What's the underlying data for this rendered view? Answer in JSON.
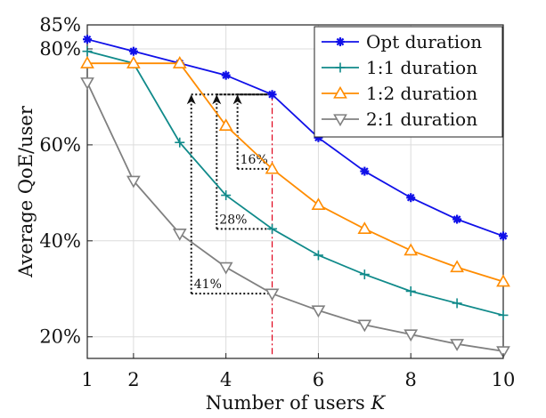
{
  "chart_data": {
    "type": "line",
    "xlabel": "Number of users",
    "xlabel_var": "K",
    "ylabel": "Average QoE/user",
    "x": [
      1,
      2,
      3,
      4,
      5,
      6,
      7,
      8,
      9,
      10
    ],
    "xticks": [
      "1",
      "2",
      "4",
      "6",
      "8",
      "10"
    ],
    "xtick_values": [
      1,
      2,
      4,
      6,
      8,
      10
    ],
    "xlim": [
      1,
      10
    ],
    "ylim": [
      15.5,
      85
    ],
    "yticks": [
      "20%",
      "40%",
      "60%",
      "80%",
      "85%"
    ],
    "ytick_values": [
      20,
      40,
      60,
      80,
      85
    ],
    "grid": true,
    "legend_position": "top-right",
    "series": [
      {
        "name": "Opt duration",
        "color": "#1010e8",
        "marker": "star",
        "values": [
          82,
          79.5,
          77,
          74.5,
          70.5,
          61.5,
          54.5,
          49,
          44.5,
          41
        ]
      },
      {
        "name": "1:1 duration",
        "color": "#108a8a",
        "marker": "plus",
        "values": [
          79.5,
          77,
          60.5,
          49.5,
          42.5,
          37,
          33,
          29.5,
          27,
          24.5
        ]
      },
      {
        "name": "1:2 duration",
        "color": "#ff8c00",
        "marker": "triangle-up",
        "values": [
          77,
          77,
          77,
          64,
          55,
          47.5,
          42.5,
          38,
          34.5,
          31.5
        ]
      },
      {
        "name": "2:1 duration",
        "color": "#808080",
        "marker": "triangle-down",
        "values": [
          73,
          52.5,
          41.5,
          34.5,
          29,
          25.5,
          22.5,
          20.5,
          18.5,
          17
        ]
      }
    ],
    "annotations": [
      {
        "text": "16%",
        "arrow_x": 4.25,
        "from_y": 55,
        "to_y": 70.5,
        "box_y": 55
      },
      {
        "text": "28%",
        "arrow_x": 3.8,
        "from_y": 42.5,
        "to_y": 70.5,
        "box_y": 42.5
      },
      {
        "text": "41%",
        "arrow_x": 3.25,
        "from_y": 29,
        "to_y": 70.5,
        "box_y": 29
      }
    ],
    "reference_x": 5
  }
}
